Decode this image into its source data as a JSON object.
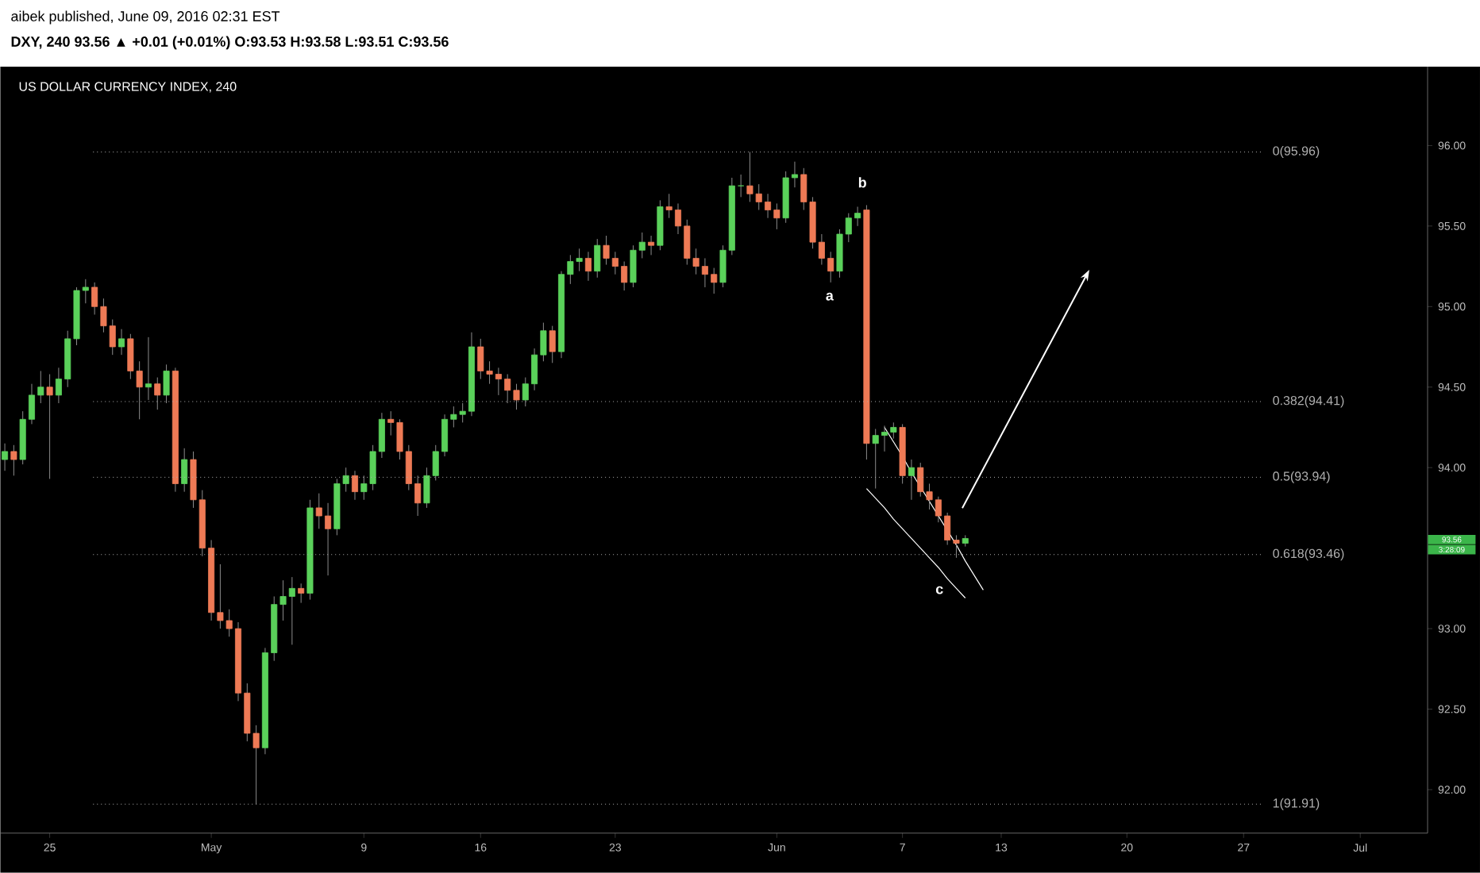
{
  "chart_data": {
    "type": "candlestick",
    "title": "US DOLLAR CURRENCY INDEX, 240",
    "subtitle": "DXY, 240 93.56 ▲ +0.01 (+0.01%) O:93.53 H:93.58 L:93.51 C:93.56",
    "annotations": [
      "aibek published, June 09, 2016 02:31 EST",
      "a",
      "b",
      "c",
      "93.56",
      "3:28:09"
    ],
    "categories": [
      null,
      null,
      null,
      null,
      null,
      "25",
      null,
      null,
      null,
      null,
      null,
      null,
      null,
      null,
      null,
      null,
      null,
      null,
      null,
      null,
      null,
      null,
      null,
      "May",
      null,
      null,
      null,
      null,
      null,
      null,
      null,
      null,
      null,
      null,
      null,
      null,
      null,
      null,
      null,
      null,
      "9",
      null,
      null,
      null,
      null,
      null,
      null,
      null,
      null,
      null,
      null,
      null,
      null,
      "16",
      null,
      null,
      null,
      null,
      null,
      null,
      null,
      null,
      null,
      null,
      null,
      null,
      null,
      null,
      "23",
      null,
      null,
      null,
      null,
      null,
      null,
      null,
      null,
      null,
      null,
      null,
      null,
      null,
      null,
      null,
      null,
      null,
      "Jun",
      null,
      null,
      null,
      null,
      null,
      null,
      null,
      null,
      null,
      null,
      null,
      null,
      null,
      "7",
      null,
      null,
      null,
      null,
      null,
      null,
      null,
      null,
      null,
      null,
      "13",
      null,
      null,
      null,
      null,
      null,
      null,
      null,
      null,
      null,
      null,
      null,
      null,
      null,
      "20",
      null,
      null,
      null,
      null,
      null,
      null,
      null,
      null,
      null,
      null,
      null,
      null,
      "27",
      null,
      null,
      null,
      null,
      null,
      null,
      null,
      null,
      null,
      null,
      null,
      null,
      "Jul",
      null,
      null,
      null,
      null,
      null,
      null,
      null
    ],
    "ohlc": [
      [
        94.05,
        94.15,
        93.98,
        94.1
      ],
      [
        94.1,
        94.14,
        93.95,
        94.05
      ],
      [
        94.05,
        94.35,
        94.02,
        94.3
      ],
      [
        94.3,
        94.52,
        94.27,
        94.45
      ],
      [
        94.45,
        94.6,
        94.4,
        94.5
      ],
      [
        94.5,
        94.58,
        93.93,
        94.45
      ],
      [
        94.45,
        94.62,
        94.4,
        94.55
      ],
      [
        94.55,
        94.85,
        94.5,
        94.8
      ],
      [
        94.8,
        95.12,
        94.76,
        95.1
      ],
      [
        95.1,
        95.17,
        95.02,
        95.12
      ],
      [
        95.12,
        95.15,
        94.95,
        95.0
      ],
      [
        95.0,
        95.05,
        94.84,
        94.88
      ],
      [
        94.88,
        94.92,
        94.7,
        94.75
      ],
      [
        94.75,
        94.86,
        94.7,
        94.8
      ],
      [
        94.8,
        94.83,
        94.55,
        94.6
      ],
      [
        94.6,
        94.66,
        94.3,
        94.5
      ],
      [
        94.5,
        94.81,
        94.42,
        94.52
      ],
      [
        94.52,
        94.56,
        94.36,
        94.45
      ],
      [
        94.45,
        94.64,
        94.4,
        94.6
      ],
      [
        94.6,
        94.62,
        93.85,
        93.9
      ],
      [
        93.9,
        94.12,
        93.85,
        94.05
      ],
      [
        94.05,
        94.1,
        93.75,
        93.8
      ],
      [
        93.8,
        93.86,
        93.45,
        93.5
      ],
      [
        93.5,
        93.55,
        93.05,
        93.1
      ],
      [
        93.1,
        93.4,
        93.0,
        93.05
      ],
      [
        93.05,
        93.12,
        92.95,
        93.0
      ],
      [
        93.0,
        93.04,
        92.55,
        92.6
      ],
      [
        92.6,
        92.66,
        92.3,
        92.35
      ],
      [
        92.35,
        92.4,
        91.91,
        92.26
      ],
      [
        92.26,
        92.88,
        92.22,
        92.85
      ],
      [
        92.85,
        93.2,
        92.8,
        93.15
      ],
      [
        93.15,
        93.3,
        93.05,
        93.2
      ],
      [
        93.2,
        93.32,
        92.9,
        93.25
      ],
      [
        93.25,
        93.28,
        93.16,
        93.22
      ],
      [
        93.22,
        93.8,
        93.18,
        93.75
      ],
      [
        93.75,
        93.84,
        93.62,
        93.7
      ],
      [
        93.7,
        93.78,
        93.33,
        93.62
      ],
      [
        93.62,
        93.93,
        93.58,
        93.9
      ],
      [
        93.9,
        94.0,
        93.85,
        93.95
      ],
      [
        93.95,
        93.98,
        93.8,
        93.85
      ],
      [
        93.85,
        93.95,
        93.8,
        93.9
      ],
      [
        93.9,
        94.14,
        93.86,
        94.1
      ],
      [
        94.1,
        94.34,
        94.06,
        94.3
      ],
      [
        94.3,
        94.35,
        94.2,
        94.28
      ],
      [
        94.28,
        94.3,
        94.05,
        94.1
      ],
      [
        94.1,
        94.14,
        93.86,
        93.9
      ],
      [
        93.9,
        93.95,
        93.7,
        93.78
      ],
      [
        93.78,
        94.0,
        93.75,
        93.95
      ],
      [
        93.95,
        94.14,
        93.92,
        94.1
      ],
      [
        94.1,
        94.33,
        94.07,
        94.3
      ],
      [
        94.3,
        94.38,
        94.25,
        94.33
      ],
      [
        94.33,
        94.4,
        94.28,
        94.35
      ],
      [
        94.35,
        94.84,
        94.32,
        94.75
      ],
      [
        94.75,
        94.8,
        94.55,
        94.6
      ],
      [
        94.6,
        94.66,
        94.52,
        94.58
      ],
      [
        94.58,
        94.62,
        94.45,
        94.55
      ],
      [
        94.55,
        94.58,
        94.4,
        94.48
      ],
      [
        94.48,
        94.52,
        94.36,
        94.42
      ],
      [
        94.42,
        94.56,
        94.38,
        94.52
      ],
      [
        94.52,
        94.74,
        94.48,
        94.7
      ],
      [
        94.7,
        94.9,
        94.66,
        94.85
      ],
      [
        94.85,
        94.88,
        94.65,
        94.72
      ],
      [
        94.72,
        95.22,
        94.68,
        95.2
      ],
      [
        95.2,
        95.32,
        95.14,
        95.28
      ],
      [
        95.28,
        95.36,
        95.22,
        95.3
      ],
      [
        95.3,
        95.34,
        95.16,
        95.22
      ],
      [
        95.22,
        95.42,
        95.18,
        95.38
      ],
      [
        95.38,
        95.44,
        95.26,
        95.3
      ],
      [
        95.3,
        95.34,
        95.2,
        95.25
      ],
      [
        95.25,
        95.28,
        95.1,
        95.15
      ],
      [
        95.15,
        95.38,
        95.12,
        95.35
      ],
      [
        95.35,
        95.46,
        95.3,
        95.4
      ],
      [
        95.4,
        95.44,
        95.32,
        95.38
      ],
      [
        95.38,
        95.66,
        95.35,
        95.62
      ],
      [
        95.62,
        95.7,
        95.55,
        95.6
      ],
      [
        95.6,
        95.64,
        95.45,
        95.5
      ],
      [
        95.5,
        95.54,
        95.26,
        95.3
      ],
      [
        95.3,
        95.36,
        95.2,
        95.25
      ],
      [
        95.25,
        95.3,
        95.12,
        95.2
      ],
      [
        95.2,
        95.24,
        95.08,
        95.15
      ],
      [
        95.15,
        95.38,
        95.12,
        95.35
      ],
      [
        95.35,
        95.8,
        95.32,
        95.75
      ],
      [
        95.75,
        95.82,
        95.68,
        95.75
      ],
      [
        95.75,
        95.96,
        95.65,
        95.7
      ],
      [
        95.7,
        95.76,
        95.6,
        95.65
      ],
      [
        95.65,
        95.7,
        95.55,
        95.6
      ],
      [
        95.6,
        95.64,
        95.48,
        95.55
      ],
      [
        95.55,
        95.84,
        95.52,
        95.8
      ],
      [
        95.8,
        95.9,
        95.74,
        95.82
      ],
      [
        95.82,
        95.86,
        95.6,
        95.65
      ],
      [
        95.65,
        95.68,
        95.36,
        95.4
      ],
      [
        95.4,
        95.45,
        95.26,
        95.3
      ],
      [
        95.3,
        95.34,
        95.15,
        95.22
      ],
      [
        95.22,
        95.48,
        95.18,
        95.45
      ],
      [
        95.45,
        95.58,
        95.4,
        95.55
      ],
      [
        95.55,
        95.62,
        95.5,
        95.58
      ],
      [
        95.6,
        95.63,
        94.05,
        94.15
      ],
      [
        94.15,
        94.24,
        93.87,
        94.2
      ],
      [
        94.2,
        94.26,
        94.1,
        94.22
      ],
      [
        94.22,
        94.28,
        94.18,
        94.25
      ],
      [
        94.25,
        94.27,
        93.9,
        93.95
      ],
      [
        93.95,
        94.05,
        93.8,
        94.0
      ],
      [
        94.0,
        94.03,
        93.82,
        93.85
      ],
      [
        93.85,
        93.9,
        93.74,
        93.8
      ],
      [
        93.8,
        93.82,
        93.66,
        93.7
      ],
      [
        93.7,
        93.72,
        93.52,
        93.55
      ],
      [
        93.55,
        93.58,
        93.44,
        93.53
      ],
      [
        93.53,
        93.58,
        93.51,
        93.56
      ],
      null,
      null,
      null,
      null,
      null,
      null,
      null,
      null,
      null,
      null,
      null,
      null,
      null,
      null,
      null,
      null,
      null,
      null,
      null,
      null,
      null,
      null,
      null,
      null,
      null,
      null,
      null,
      null,
      null,
      null,
      null,
      null,
      null,
      null,
      null,
      null,
      null,
      null,
      null,
      null,
      null,
      null,
      null,
      null,
      null,
      null,
      null,
      null,
      null,
      null,
      null
    ],
    "series": [
      {
        "type": "line",
        "color": "#ffffff",
        "values": [
          null,
          null,
          null,
          null,
          null,
          null,
          null,
          null,
          null,
          null,
          null,
          null,
          null,
          null,
          null,
          null,
          null,
          null,
          null,
          null,
          null,
          null,
          null,
          null,
          null,
          null,
          null,
          null,
          null,
          null,
          null,
          null,
          null,
          null,
          null,
          null,
          null,
          null,
          null,
          null,
          null,
          null,
          null,
          null,
          null,
          null,
          null,
          null,
          null,
          null,
          null,
          null,
          null,
          null,
          null,
          null,
          null,
          null,
          null,
          null,
          null,
          null,
          null,
          null,
          null,
          null,
          null,
          null,
          null,
          null,
          null,
          null,
          null,
          null,
          null,
          null,
          null,
          null,
          null,
          null,
          null,
          null,
          null,
          null,
          null,
          null,
          null,
          null,
          null,
          null,
          null,
          null,
          null,
          null,
          null,
          null,
          null,
          null,
          94.25,
          94.16,
          94.07,
          93.97,
          93.88,
          93.79,
          93.7,
          93.61,
          93.52,
          93.42,
          93.33,
          93.24,
          null,
          null,
          null,
          null,
          null,
          null,
          null,
          null,
          null,
          null,
          null,
          null,
          null,
          null,
          null,
          null,
          null,
          null,
          null,
          null,
          null,
          null,
          null,
          null,
          null,
          null,
          null,
          null,
          null,
          null,
          null,
          null,
          null,
          null,
          null,
          null,
          null,
          null,
          null,
          null,
          null,
          null,
          null,
          null,
          null,
          null,
          null,
          null,
          null
        ]
      },
      {
        "type": "line",
        "color": "#ffffff",
        "values": [
          null,
          null,
          null,
          null,
          null,
          null,
          null,
          null,
          null,
          null,
          null,
          null,
          null,
          null,
          null,
          null,
          null,
          null,
          null,
          null,
          null,
          null,
          null,
          null,
          null,
          null,
          null,
          null,
          null,
          null,
          null,
          null,
          null,
          null,
          null,
          null,
          null,
          null,
          null,
          null,
          null,
          null,
          null,
          null,
          null,
          null,
          null,
          null,
          null,
          null,
          null,
          null,
          null,
          null,
          null,
          null,
          null,
          null,
          null,
          null,
          null,
          null,
          null,
          null,
          null,
          null,
          null,
          null,
          null,
          null,
          null,
          null,
          null,
          null,
          null,
          null,
          null,
          null,
          null,
          null,
          null,
          null,
          null,
          null,
          null,
          null,
          null,
          null,
          null,
          null,
          null,
          null,
          null,
          null,
          null,
          null,
          93.87,
          93.81,
          93.75,
          93.68,
          93.62,
          93.56,
          93.5,
          93.44,
          93.38,
          93.31,
          93.25,
          93.19,
          null,
          null,
          null,
          null,
          null,
          null,
          null,
          null,
          null,
          null,
          null,
          null,
          null,
          null,
          null,
          null,
          null,
          null,
          null,
          null,
          null,
          null,
          null,
          null,
          null,
          null,
          null,
          null,
          null,
          null,
          null,
          null,
          null,
          null,
          null,
          null,
          null,
          null,
          null,
          null,
          null,
          null,
          null,
          null,
          null,
          null,
          null,
          null,
          null,
          null,
          null
        ]
      }
    ],
    "ref_lines": [
      {
        "axis": "y",
        "value": 95.96,
        "label": "0(95.96)",
        "color": "#b0b0b0",
        "line_style": "dotted"
      },
      {
        "axis": "y",
        "value": 94.41,
        "label": "0.382(94.41)",
        "color": "#b0b0b0",
        "line_style": "dotted"
      },
      {
        "axis": "y",
        "value": 93.94,
        "label": "0.5(93.94)",
        "color": "#b0b0b0",
        "line_style": "dotted"
      },
      {
        "axis": "y",
        "value": 93.46,
        "label": "0.618(93.46)",
        "color": "#b0b0b0",
        "line_style": "dotted"
      },
      {
        "axis": "y",
        "value": 91.91,
        "label": "1(91.91)",
        "color": "#b0b0b0",
        "line_style": "dotted"
      }
    ],
    "ylim": [
      91.73,
      96.49
    ],
    "yticks": [
      {
        "value": 92,
        "label": "92.00"
      },
      {
        "value": 92.5,
        "label": "92.50"
      },
      {
        "value": 93,
        "label": "93.00"
      },
      {
        "value": 94,
        "label": "94.00"
      },
      {
        "value": 94.5,
        "label": "94.50"
      },
      {
        "value": 95,
        "label": "95.00"
      },
      {
        "value": 95.5,
        "label": "95.50"
      },
      {
        "value": 96,
        "label": "96.00"
      }
    ]
  }
}
